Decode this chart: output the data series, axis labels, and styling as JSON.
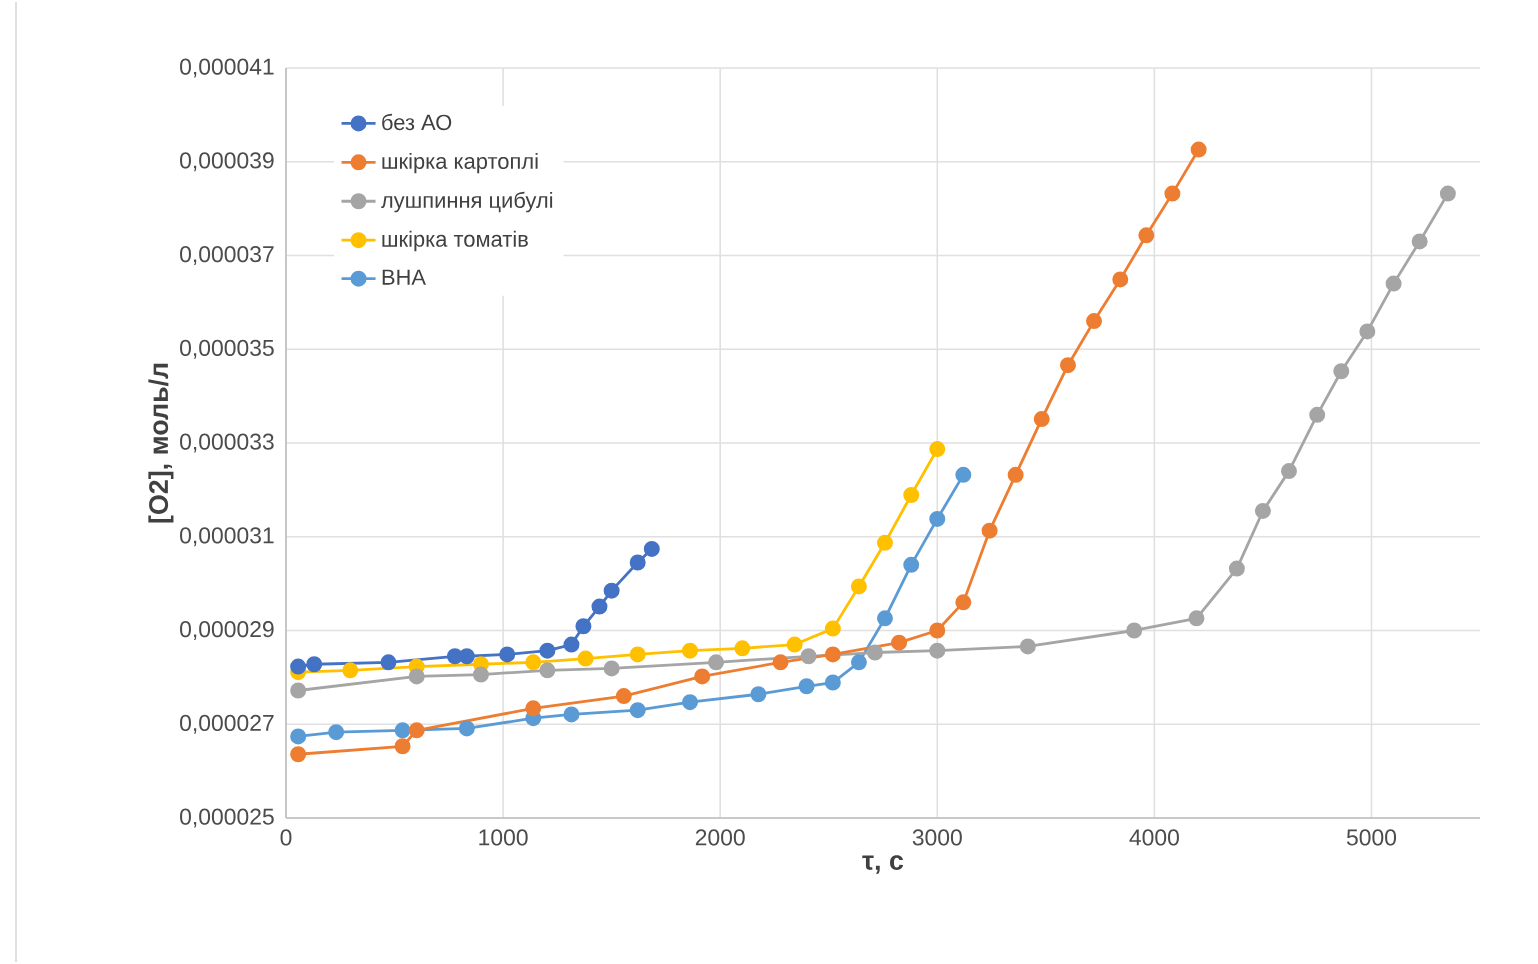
{
  "chart_data": {
    "type": "line",
    "xlabel": "τ, с",
    "ylabel": "[O2], моль/л",
    "xlim": [
      0,
      5500
    ],
    "xticks": [
      0,
      1000,
      2000,
      3000,
      4000,
      5000
    ],
    "ylim": [
      2.5e-05,
      4.1e-05
    ],
    "yticks": [
      {
        "value": 2.5e-05,
        "label": "0,000025"
      },
      {
        "value": 2.7e-05,
        "label": "0,000027"
      },
      {
        "value": 2.9e-05,
        "label": "0,000029"
      },
      {
        "value": 3.1e-05,
        "label": "0,000031"
      },
      {
        "value": 3.3e-05,
        "label": "0,000033"
      },
      {
        "value": 3.5e-05,
        "label": "0,000035"
      },
      {
        "value": 3.7e-05,
        "label": "0,000037"
      },
      {
        "value": 3.9e-05,
        "label": "0,000039"
      },
      {
        "value": 4.1e-05,
        "label": "0,000041"
      }
    ],
    "grid": true,
    "legend": "top left",
    "marker": "circle",
    "line_style": "solid",
    "series": [
      {
        "name": "без АО",
        "color": "#4472c4",
        "x": [
          56,
          130,
          472,
          778,
          833,
          1019,
          1204,
          1315,
          1370,
          1444,
          1500,
          1620,
          1685
        ],
        "values": [
          2.823e-05,
          2.828e-05,
          2.832e-05,
          2.845e-05,
          2.845e-05,
          2.849e-05,
          2.857e-05,
          2.87e-05,
          2.909e-05,
          2.951e-05,
          2.985e-05,
          3.045e-05,
          3.074e-05
        ]
      },
      {
        "name": "шкірка картоплі",
        "color": "#ed7d31",
        "x": [
          56,
          537,
          602,
          1139,
          1556,
          1917,
          2278,
          2519,
          2824,
          3000,
          3120,
          3241,
          3361,
          3481,
          3602,
          3722,
          3843,
          3963,
          4083,
          4204
        ],
        "values": [
          2.636e-05,
          2.653e-05,
          2.687e-05,
          2.734e-05,
          2.76e-05,
          2.802e-05,
          2.832e-05,
          2.849e-05,
          2.874e-05,
          2.9e-05,
          2.96e-05,
          3.113e-05,
          3.232e-05,
          3.351e-05,
          3.466e-05,
          3.56e-05,
          3.649e-05,
          3.743e-05,
          3.832e-05,
          3.926e-05
        ]
      },
      {
        "name": "лушпиння цибулі",
        "color": "#a5a5a5",
        "x": [
          56,
          602,
          898,
          1204,
          1500,
          1981,
          2407,
          2713,
          3000,
          3417,
          3907,
          4194,
          4380,
          4500,
          4620,
          4750,
          4861,
          4981,
          5102,
          5222,
          5352
        ],
        "values": [
          2.772e-05,
          2.802e-05,
          2.806e-05,
          2.815e-05,
          2.819e-05,
          2.832e-05,
          2.845e-05,
          2.853e-05,
          2.857e-05,
          2.866e-05,
          2.9e-05,
          2.926e-05,
          3.032e-05,
          3.155e-05,
          3.24e-05,
          3.36e-05,
          3.453e-05,
          3.538e-05,
          3.64e-05,
          3.73e-05,
          3.832e-05
        ]
      },
      {
        "name": "шкірка томатів",
        "color": "#ffc000",
        "x": [
          56,
          296,
          602,
          898,
          1139,
          1380,
          1620,
          1861,
          2102,
          2343,
          2519,
          2639,
          2759,
          2880,
          3000
        ],
        "values": [
          2.811e-05,
          2.815e-05,
          2.823e-05,
          2.828e-05,
          2.832e-05,
          2.84e-05,
          2.849e-05,
          2.857e-05,
          2.862e-05,
          2.87e-05,
          2.904e-05,
          2.994e-05,
          3.087e-05,
          3.189e-05,
          3.287e-05
        ]
      },
      {
        "name": "ВНА",
        "color": "#5b9bd5",
        "x": [
          56,
          231,
          537,
          833,
          1139,
          1315,
          1620,
          1861,
          2176,
          2398,
          2519,
          2639,
          2759,
          2880,
          3000,
          3120
        ],
        "values": [
          2.674e-05,
          2.683e-05,
          2.687e-05,
          2.691e-05,
          2.713e-05,
          2.721e-05,
          2.73e-05,
          2.747e-05,
          2.764e-05,
          2.781e-05,
          2.789e-05,
          2.832e-05,
          2.926e-05,
          3.04e-05,
          3.138e-05,
          3.232e-05
        ]
      }
    ]
  }
}
